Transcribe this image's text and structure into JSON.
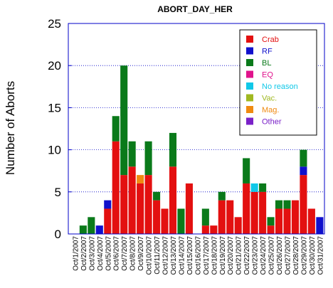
{
  "chart_data": {
    "type": "bar",
    "stacked": true,
    "title": "ABORT_DAY_HER",
    "xlabel": "",
    "ylabel": "Number of Aborts",
    "ylim": [
      0,
      25
    ],
    "yticks": [
      0,
      5,
      10,
      15,
      20,
      25
    ],
    "grid": "horizontal-dotted",
    "legend_position": "top-right",
    "categories": [
      "Oct/1/2007",
      "Oct/2/2007",
      "Oct/3/2007",
      "Oct/4/2007",
      "Oct/5/2007",
      "Oct/6/2007",
      "Oct/7/2007",
      "Oct/8/2007",
      "Oct/9/2007",
      "Oct/10/2007",
      "Oct/11/2007",
      "Oct/12/2007",
      "Oct/13/2007",
      "Oct/14/2007",
      "Oct/15/2007",
      "Oct/16/2007",
      "Oct/17/2007",
      "Oct/18/2007",
      "Oct/19/2007",
      "Oct/20/2007",
      "Oct/21/2007",
      "Oct/22/2007",
      "Oct/23/2007",
      "Oct/24/2007",
      "Oct/25/2007",
      "Oct/26/2007",
      "Oct/27/2007",
      "Oct/28/2007",
      "Oct/29/2007",
      "Oct/30/2007",
      "Oct/31/2007"
    ],
    "series": [
      {
        "name": "Crab",
        "color": "#e31010",
        "values": [
          0,
          0,
          0,
          0,
          3,
          11,
          7,
          8,
          6,
          7,
          4,
          3,
          8,
          0,
          6,
          0,
          1,
          1,
          4,
          4,
          2,
          6,
          5,
          5,
          1,
          3,
          3,
          4,
          7,
          3,
          0
        ]
      },
      {
        "name": "RF",
        "color": "#1010cc",
        "values": [
          0,
          0,
          0,
          1,
          1,
          0,
          0,
          0,
          0,
          0,
          0,
          0,
          0,
          0,
          0,
          0,
          0,
          0,
          0,
          0,
          0,
          0,
          0,
          0,
          0,
          0,
          0,
          0,
          1,
          0,
          2
        ]
      },
      {
        "name": "BL",
        "color": "#0a7a1a",
        "values": [
          0,
          1,
          2,
          0,
          0,
          3,
          13,
          3,
          0,
          4,
          1,
          0,
          4,
          3,
          0,
          0,
          2,
          0,
          1,
          0,
          0,
          3,
          0,
          1,
          1,
          1,
          1,
          0,
          2,
          0,
          0
        ]
      },
      {
        "name": "EQ",
        "color": "#e0138c",
        "values": [
          0,
          0,
          0,
          0,
          0,
          0,
          0,
          0,
          0,
          0,
          0,
          0,
          0,
          0,
          0,
          0,
          0,
          0,
          0,
          0,
          0,
          0,
          0,
          0,
          0,
          0,
          0,
          0,
          0,
          0,
          0
        ]
      },
      {
        "name": "No reason",
        "color": "#10c8e8",
        "values": [
          0,
          0,
          0,
          0,
          0,
          0,
          0,
          0,
          0,
          0,
          0,
          0,
          0,
          0,
          0,
          0,
          0,
          0,
          0,
          0,
          0,
          0,
          1,
          0,
          0,
          0,
          0,
          0,
          0,
          0,
          0
        ]
      },
      {
        "name": "Vac.",
        "color": "#a0b820",
        "values": [
          0,
          0,
          0,
          0,
          0,
          0,
          0,
          0,
          0,
          0,
          0,
          0,
          0,
          0,
          0,
          0,
          0,
          0,
          0,
          0,
          0,
          0,
          0,
          0,
          0,
          0,
          0,
          0,
          0,
          0,
          0
        ]
      },
      {
        "name": "Mag.",
        "color": "#f08a10",
        "values": [
          0,
          0,
          0,
          0,
          0,
          0,
          0,
          0,
          1,
          0,
          0,
          0,
          0,
          0,
          0,
          0,
          0,
          0,
          0,
          0,
          0,
          0,
          0,
          0,
          0,
          0,
          0,
          0,
          0,
          0,
          0
        ]
      },
      {
        "name": "Other",
        "color": "#7a20c8",
        "values": [
          0,
          0,
          0,
          0,
          0,
          0,
          0,
          0,
          0,
          0,
          0,
          0,
          0,
          0,
          0,
          0,
          0,
          0,
          0,
          0,
          0,
          0,
          0,
          0,
          0,
          0,
          0,
          0,
          0,
          0,
          0
        ]
      }
    ]
  }
}
